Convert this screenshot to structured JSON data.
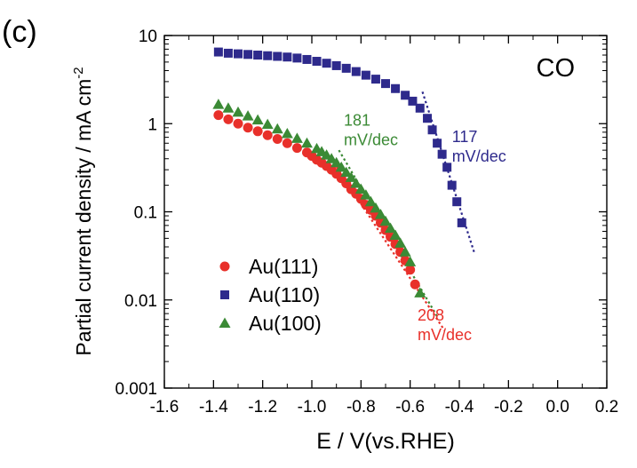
{
  "panel_label": "(c)",
  "chart_data": {
    "type": "scatter",
    "title": "CO",
    "xlabel": "E / V(vs.RHE)",
    "ylabel": "Partial current density / mA cm",
    "ylabel_superscript": "-2",
    "xscale": "linear",
    "yscale": "log",
    "xlim": [
      -1.6,
      0.2
    ],
    "ylim": [
      0.001,
      10
    ],
    "xticks": [
      "-1.6",
      "-1.4",
      "-1.2",
      "-1.0",
      "-0.8",
      "-0.6",
      "-0.4",
      "-0.2",
      "0.0",
      "0.2"
    ],
    "yticks": [
      "0.001",
      "0.01",
      "0.1",
      "1",
      "10"
    ],
    "legend_position": "bottom-left",
    "grid": false,
    "series": [
      {
        "name": "Au(111)",
        "marker": "circle",
        "color": "#e8302a",
        "x": [
          -1.38,
          -1.34,
          -1.3,
          -1.26,
          -1.22,
          -1.18,
          -1.14,
          -1.1,
          -1.06,
          -1.02,
          -1.0,
          -0.98,
          -0.96,
          -0.94,
          -0.92,
          -0.9,
          -0.88,
          -0.86,
          -0.84,
          -0.82,
          -0.8,
          -0.78,
          -0.76,
          -0.74,
          -0.72,
          -0.7,
          -0.68,
          -0.66,
          -0.64,
          -0.62,
          -0.6,
          -0.58
        ],
        "y": [
          1.25,
          1.12,
          1.0,
          0.9,
          0.82,
          0.74,
          0.67,
          0.6,
          0.53,
          0.47,
          0.43,
          0.39,
          0.36,
          0.33,
          0.3,
          0.27,
          0.24,
          0.21,
          0.18,
          0.16,
          0.14,
          0.12,
          0.105,
          0.09,
          0.075,
          0.062,
          0.052,
          0.043,
          0.035,
          0.028,
          0.022,
          0.015
        ]
      },
      {
        "name": "Au(110)",
        "marker": "square",
        "color": "#2e2a8c",
        "x": [
          -1.38,
          -1.34,
          -1.3,
          -1.26,
          -1.22,
          -1.18,
          -1.14,
          -1.1,
          -1.06,
          -1.02,
          -0.98,
          -0.94,
          -0.9,
          -0.86,
          -0.82,
          -0.78,
          -0.74,
          -0.7,
          -0.66,
          -0.62,
          -0.59,
          -0.56,
          -0.53,
          -0.51,
          -0.49,
          -0.47,
          -0.45,
          -0.43,
          -0.41,
          -0.39
        ],
        "y": [
          6.5,
          6.3,
          6.2,
          6.1,
          6.0,
          5.9,
          5.8,
          5.7,
          5.55,
          5.35,
          5.1,
          4.85,
          4.55,
          4.25,
          3.9,
          3.55,
          3.2,
          2.85,
          2.5,
          2.1,
          1.8,
          1.5,
          1.15,
          0.85,
          0.6,
          0.45,
          0.32,
          0.2,
          0.13,
          0.075
        ]
      },
      {
        "name": "Au(100)",
        "marker": "triangle",
        "color": "#3b8a35",
        "x": [
          -1.38,
          -1.34,
          -1.3,
          -1.26,
          -1.22,
          -1.18,
          -1.14,
          -1.1,
          -1.06,
          -1.02,
          -0.98,
          -0.96,
          -0.94,
          -0.92,
          -0.9,
          -0.88,
          -0.86,
          -0.84,
          -0.82,
          -0.8,
          -0.78,
          -0.76,
          -0.74,
          -0.72,
          -0.7,
          -0.68,
          -0.66,
          -0.64,
          -0.62,
          -0.6,
          -0.56
        ],
        "y": [
          1.65,
          1.5,
          1.35,
          1.22,
          1.1,
          0.98,
          0.87,
          0.77,
          0.68,
          0.6,
          0.52,
          0.48,
          0.44,
          0.4,
          0.36,
          0.32,
          0.28,
          0.245,
          0.21,
          0.18,
          0.155,
          0.13,
          0.11,
          0.093,
          0.078,
          0.065,
          0.054,
          0.044,
          0.035,
          0.027,
          0.012
        ]
      }
    ],
    "tafel_lines": [
      {
        "color": "#3b8a35",
        "x": [
          -0.89,
          -0.49
        ],
        "y": [
          0.5,
          0.0065
        ]
      },
      {
        "color": "#e8302a",
        "x": [
          -0.91,
          -0.46
        ],
        "y": [
          0.36,
          0.0045
        ]
      },
      {
        "color": "#2e2a8c",
        "x": [
          -0.55,
          -0.34
        ],
        "y": [
          2.3,
          0.035
        ]
      }
    ],
    "annotations": [
      {
        "line1": "181",
        "line2": "mV/dec",
        "color": "#3b8a35",
        "x": -0.87,
        "y": 0.95
      },
      {
        "line1": "117",
        "line2": "mV/dec",
        "color": "#2e2a8c",
        "x": -0.43,
        "y": 0.62
      },
      {
        "line1": "208",
        "line2": "mV/dec",
        "color": "#e8302a",
        "x": -0.57,
        "y": 0.0058
      }
    ]
  }
}
